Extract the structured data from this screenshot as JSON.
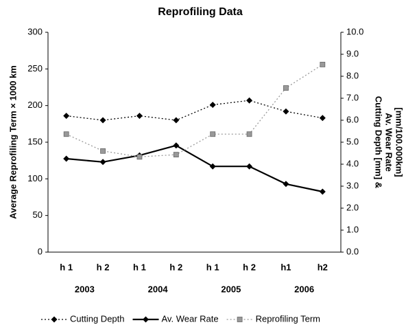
{
  "chart_data": {
    "type": "line",
    "title": "Reprofiling Data",
    "ylabel": "Average Reprofiling Term × 1000 km",
    "y2label": [
      "Cutting Depth [mm] &",
      "Av. Wear Rate",
      "[mm/100.000km]"
    ],
    "categories": [
      "h 1",
      "h 2",
      "h 1",
      "h 2",
      "h 1",
      "h 2",
      "h1",
      "h2"
    ],
    "group_labels": [
      "2003",
      "2004",
      "2005",
      "2006"
    ],
    "ylim": [
      0,
      300
    ],
    "yticks": [
      0,
      50,
      100,
      150,
      200,
      250,
      300
    ],
    "y2lim": [
      0,
      10
    ],
    "y2ticks": [
      {
        "value": 0,
        "label": "0.0"
      },
      {
        "value": 1,
        "label": "1.0"
      },
      {
        "value": 2,
        "label": "2.0"
      },
      {
        "value": 3,
        "label": "3.0"
      },
      {
        "value": 4,
        "label": "4.0"
      },
      {
        "value": 5,
        "label": "5.0"
      },
      {
        "value": 6,
        "label": "6.0"
      },
      {
        "value": 7,
        "label": "7.0"
      },
      {
        "value": 8,
        "label": "8.0"
      },
      {
        "value": 9,
        "label": "9.0"
      },
      {
        "value": 10,
        "label": "10.0"
      }
    ],
    "grid": false,
    "legend": "bottom",
    "series": [
      {
        "name": "Cutting Depth",
        "color": "#000000",
        "axis": "y2",
        "line_style": "dotted",
        "marker": "diamond",
        "values": [
          6.2,
          6.0,
          6.2,
          6.0,
          6.7,
          6.9,
          6.4,
          6.1
        ]
      },
      {
        "name": "Av. Wear Rate",
        "color": "#000000",
        "axis": "y2",
        "line_style": "solid",
        "marker": "diamond",
        "values": [
          4.25,
          4.1,
          4.4,
          4.85,
          3.9,
          3.9,
          3.1,
          2.75
        ]
      },
      {
        "name": "Reprofiling Term",
        "color": "#999999",
        "axis": "y",
        "line_style": "dotted",
        "marker": "square",
        "values": [
          161,
          138,
          130,
          133,
          161,
          161,
          224,
          256
        ]
      }
    ]
  }
}
